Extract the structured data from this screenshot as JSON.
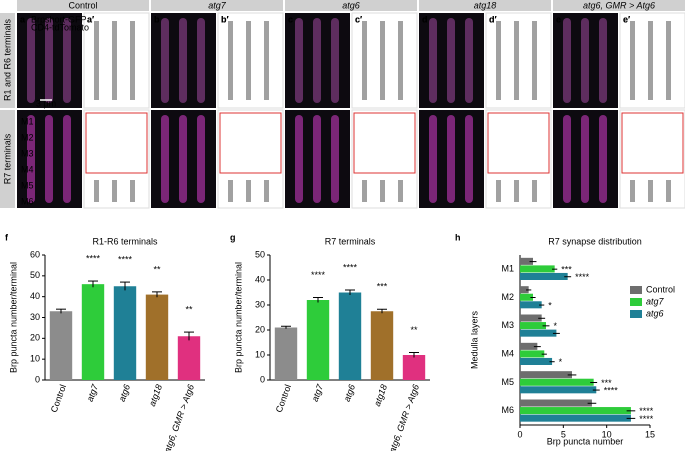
{
  "figure": {
    "columns": [
      {
        "label": "Control",
        "letters": [
          "a",
          "a′"
        ],
        "color": "#000000"
      },
      {
        "label": "atg7",
        "letters": [
          "b",
          "b′"
        ],
        "color": "#2db83d"
      },
      {
        "label": "atg6",
        "letters": [
          "c",
          "c′"
        ],
        "color": "#1f7f9a"
      },
      {
        "label": "atg18",
        "letters": [
          "d",
          "d′"
        ],
        "color": "#9a6a2a"
      },
      {
        "label": "atg6, GMR > Atg6",
        "letters": [
          "e",
          "e′"
        ],
        "color": "#c0307a"
      }
    ],
    "rows": [
      "R1 and R6 terminals",
      "R7 terminals"
    ],
    "scale_bar": "3 μm",
    "layers": [
      "M1",
      "M2",
      "M3",
      "M4",
      "M5",
      "M6"
    ],
    "channels": [
      "Brpshort-GFP",
      "CD4-tdTomato"
    ]
  },
  "chart_data": [
    {
      "type": "bar",
      "panel": "f",
      "title": "R1-R6 terminals",
      "y_label": "Brp puncta number/terminal",
      "categories": [
        "Control",
        "atg7",
        "atg6",
        "atg18",
        "atg6, GMR > Atg6"
      ],
      "values": [
        33,
        46,
        45,
        41,
        21
      ],
      "errors": [
        1,
        1.5,
        2,
        1.3,
        2
      ],
      "colors": [
        "#8c8c8c",
        "#2ecc3a",
        "#1f8096",
        "#a0702a",
        "#e0307f"
      ],
      "significance": [
        null,
        "****",
        "****",
        "**",
        "**"
      ],
      "ylim": [
        0,
        60
      ],
      "yticks": [
        0,
        10,
        20,
        30,
        40,
        50,
        60
      ]
    },
    {
      "type": "bar",
      "panel": "g",
      "title": "R7 terminals",
      "y_label": "Brp puncta number/terminal",
      "categories": [
        "Control",
        "atg7",
        "atg6",
        "atg18",
        "atg6, GMR > Atg6"
      ],
      "values": [
        21,
        32,
        35,
        27.5,
        10
      ],
      "errors": [
        0.5,
        1,
        1,
        0.8,
        1
      ],
      "colors": [
        "#8c8c8c",
        "#2ecc3a",
        "#1f8096",
        "#a0702a",
        "#e0307f"
      ],
      "significance": [
        null,
        "****",
        "****",
        "***",
        "**"
      ],
      "ylim": [
        0,
        50
      ],
      "yticks": [
        0,
        10,
        20,
        30,
        40,
        50
      ]
    },
    {
      "type": "hbar",
      "panel": "h",
      "title": "R7 synapse distribution",
      "x_label": "Brp puncta number",
      "y_label": "Medulla layers",
      "categories": [
        "M1",
        "M2",
        "M3",
        "M4",
        "M5",
        "M6"
      ],
      "series": [
        {
          "name": "Control",
          "color": "#6e6e6e",
          "values": [
            1.5,
            1,
            2.5,
            2,
            6,
            8.3
          ],
          "errors": [
            0.4,
            0.3,
            0.4,
            0.4,
            0.5,
            0.5
          ],
          "significance": [
            null,
            null,
            null,
            null,
            null,
            null
          ]
        },
        {
          "name": "atg7",
          "color": "#2ecc3a",
          "values": [
            4,
            1.5,
            3,
            2.8,
            8.5,
            12.8
          ],
          "errors": [
            0.3,
            0.3,
            0.4,
            0.3,
            0.4,
            0.5
          ],
          "significance": [
            "***",
            null,
            "*",
            null,
            "***",
            "****"
          ]
        },
        {
          "name": "atg6",
          "color": "#1f8096",
          "values": [
            5.5,
            2.5,
            4.2,
            3.7,
            8.8,
            12.8
          ],
          "errors": [
            0.4,
            0.3,
            0.4,
            0.3,
            0.4,
            0.5
          ],
          "significance": [
            "****",
            "*",
            null,
            "*",
            "****",
            "****"
          ]
        }
      ],
      "xlim": [
        0,
        15
      ],
      "xticks": [
        0,
        5,
        10,
        15
      ]
    }
  ]
}
